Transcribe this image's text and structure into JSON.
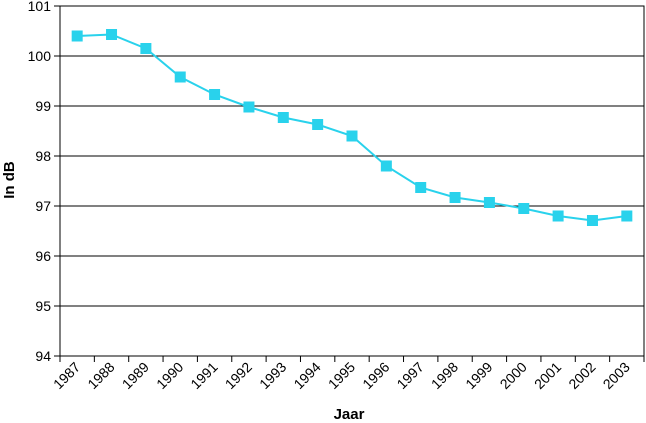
{
  "chart_data": {
    "type": "line",
    "title": "",
    "xlabel": "Jaar",
    "ylabel": "In dB",
    "categories": [
      "1987",
      "1988",
      "1989",
      "1990",
      "1991",
      "1992",
      "1993",
      "1994",
      "1995",
      "1996",
      "1997",
      "1998",
      "1999",
      "2000",
      "2001",
      "2002",
      "2003"
    ],
    "series": [
      {
        "values": [
          100.4,
          100.43,
          100.15,
          99.58,
          99.23,
          98.98,
          98.77,
          98.63,
          98.4,
          97.8,
          97.37,
          97.17,
          97.07,
          96.95,
          96.8,
          96.71,
          96.8
        ]
      }
    ],
    "ylim": [
      94,
      101
    ],
    "yticks": [
      "94",
      "95",
      "96",
      "97",
      "98",
      "99",
      "100",
      "101"
    ],
    "grid": true,
    "legend": "none",
    "colors": {
      "line": "#29d2ec",
      "marker": "#29d2ec",
      "grid": "#000000",
      "axis": "#000000"
    }
  }
}
